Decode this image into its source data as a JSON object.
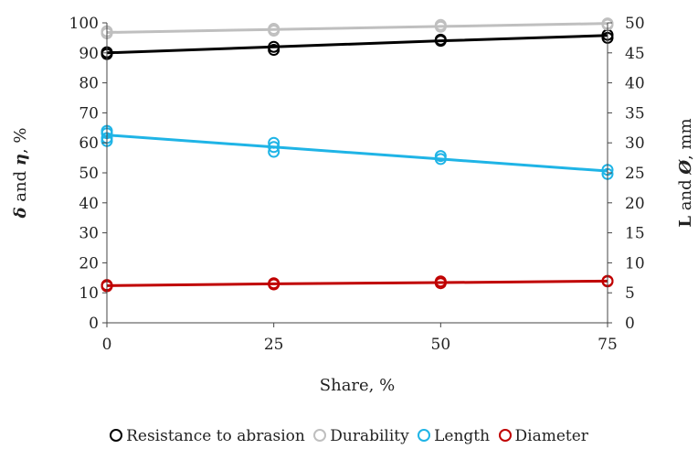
{
  "chart_data": {
    "type": "line",
    "xlabel": "Share, %",
    "ylabel_left": {
      "sym1": "δ",
      "and": " and ",
      "sym2": "η",
      "unit": ", %"
    },
    "ylabel_right": {
      "sym1": "L",
      "and": " and ",
      "sym2": "Ø",
      "unit": ", mm"
    },
    "x_ticks": [
      "0",
      "25",
      "50",
      "75"
    ],
    "x": [
      0,
      25,
      50,
      75
    ],
    "ylim_left": [
      0,
      100
    ],
    "ylim_right": [
      0,
      50
    ],
    "y_ticks_left": [
      "0",
      "10",
      "20",
      "30",
      "40",
      "50",
      "60",
      "70",
      "80",
      "90",
      "100"
    ],
    "y_ticks_right": [
      "0",
      "5",
      "10",
      "15",
      "20",
      "25",
      "30",
      "35",
      "40",
      "45",
      "50"
    ],
    "grid": false,
    "legend_position": "bottom",
    "series": [
      {
        "name": "Resistance to abrasion",
        "color": "#000000",
        "axis": "left",
        "trend": [
          90.0,
          92.0,
          94.0,
          95.8
        ],
        "points": [
          [
            0,
            89.6
          ],
          [
            0,
            90.2
          ],
          [
            25,
            91.0
          ],
          [
            25,
            92.0
          ],
          [
            50,
            94.0
          ],
          [
            50,
            94.4
          ],
          [
            75,
            95.0
          ],
          [
            75,
            96.0
          ]
        ]
      },
      {
        "name": "Durability",
        "color": "#bfbfbf",
        "axis": "left",
        "trend": [
          96.8,
          97.8,
          98.8,
          99.8
        ],
        "points": [
          [
            0,
            96.5
          ],
          [
            0,
            97.2
          ],
          [
            25,
            97.4
          ],
          [
            25,
            98.0
          ],
          [
            50,
            98.7
          ],
          [
            50,
            99.3
          ],
          [
            75,
            99.4
          ],
          [
            75,
            99.8
          ]
        ]
      },
      {
        "name": "Length",
        "color": "#1fb4e6",
        "axis": "right",
        "trend": [
          31.3,
          29.3,
          27.3,
          25.3
        ],
        "points": [
          [
            0,
            30.3
          ],
          [
            0,
            30.8
          ],
          [
            0,
            31.6
          ],
          [
            0,
            32.0
          ],
          [
            25,
            28.5
          ],
          [
            25,
            29.3
          ],
          [
            25,
            30.0
          ],
          [
            50,
            27.3
          ],
          [
            50,
            27.8
          ],
          [
            75,
            24.8
          ],
          [
            75,
            25.5
          ]
        ]
      },
      {
        "name": "Diameter",
        "color": "#c00000",
        "axis": "right",
        "trend": [
          6.2,
          6.5,
          6.7,
          6.95
        ],
        "points": [
          [
            0,
            6.1
          ],
          [
            0,
            6.3
          ],
          [
            25,
            6.4
          ],
          [
            25,
            6.6
          ],
          [
            50,
            6.6
          ],
          [
            50,
            6.9
          ],
          [
            75,
            6.9
          ],
          [
            75,
            7.0
          ]
        ]
      }
    ]
  }
}
